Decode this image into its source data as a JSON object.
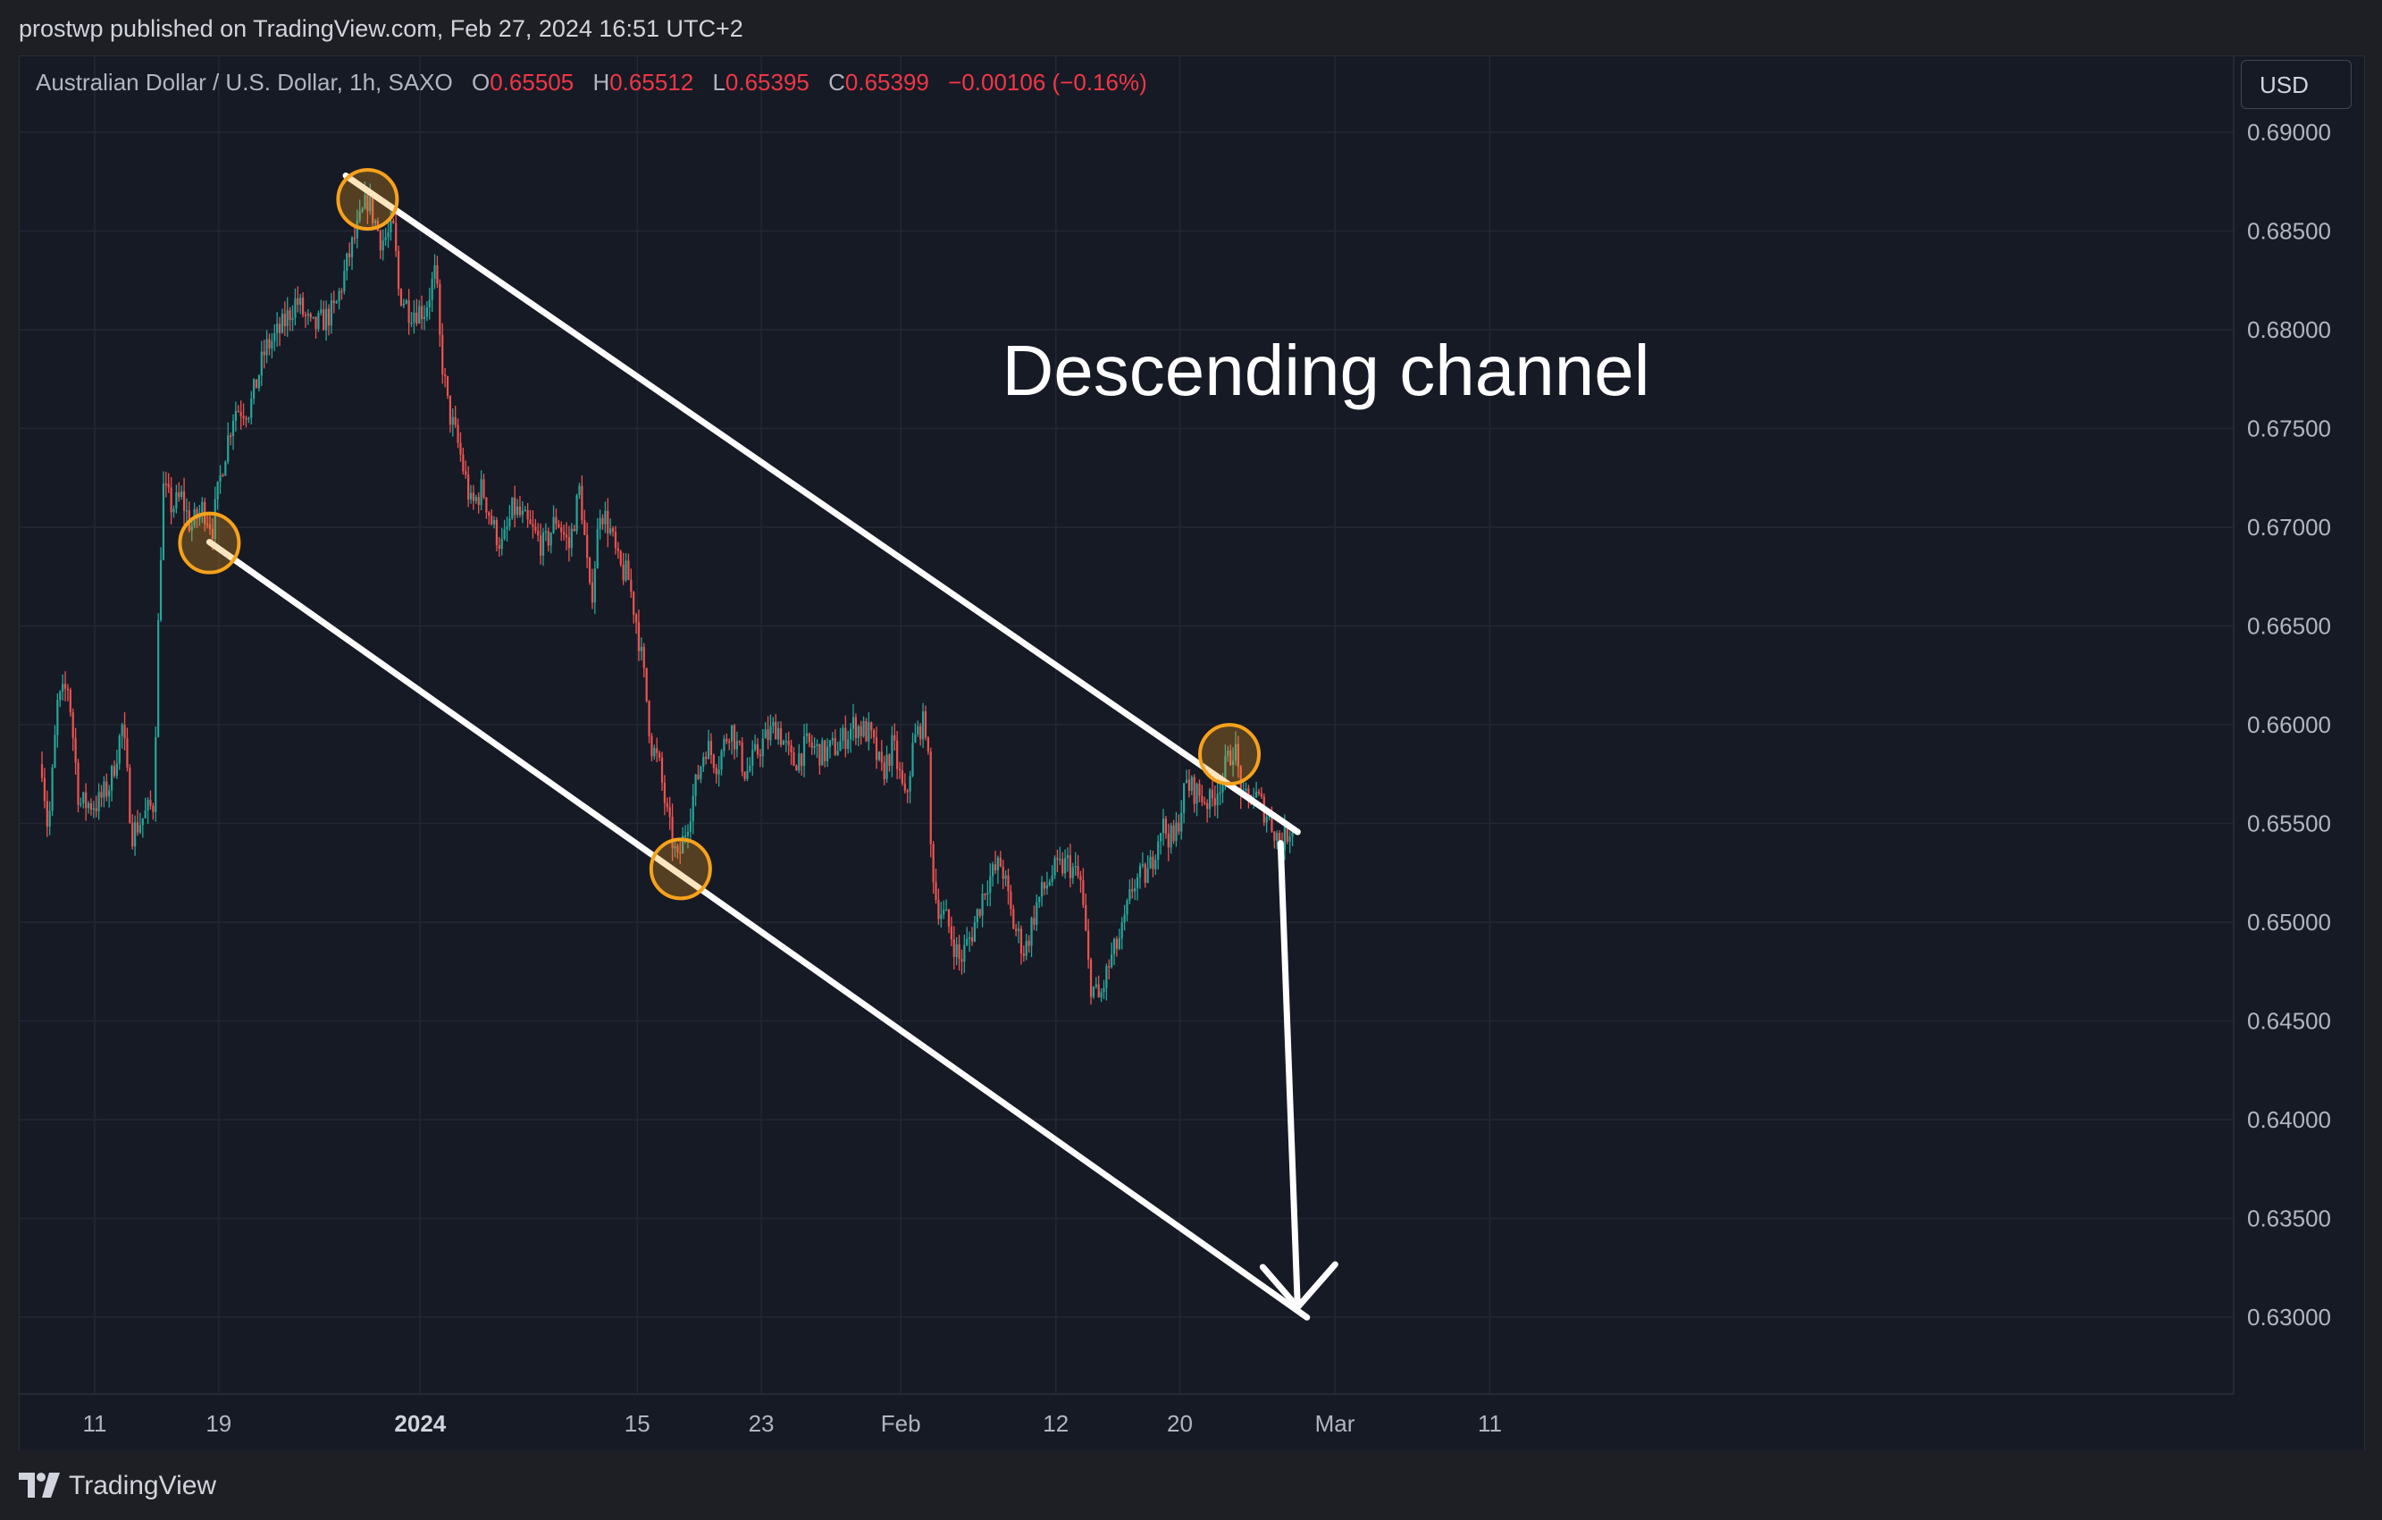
{
  "header": {
    "published_text": "prostwp published on TradingView.com, Feb 27, 2024 16:51 UTC+2"
  },
  "legend": {
    "symbol": "Australian Dollar / U.S. Dollar, 1h, SAXO",
    "open_label": "O",
    "open": "0.65505",
    "high_label": "H",
    "high": "0.65512",
    "low_label": "L",
    "low": "0.65395",
    "close_label": "C",
    "close": "0.65399",
    "change": "−0.00106 (−0.16%)"
  },
  "currency_button": "USD",
  "footer": {
    "brand": "TradingView",
    "logo_icon": "tradingview-logo-icon"
  },
  "colors": {
    "background": "#161a25",
    "grid": "#232733",
    "up": "#26a69a",
    "down": "#ef5350",
    "annotation": "#ffffff",
    "highlight_circle": "#f7a21b",
    "legend_values": "#f23645"
  },
  "chart_data": {
    "type": "candlestick",
    "title": "Australian Dollar / U.S. Dollar, 1h, SAXO",
    "annotation_text": "Descending channel",
    "y_axis": {
      "range": [
        0.6265,
        0.6915
      ],
      "ticks": [
        "0.69000",
        "0.68500",
        "0.68000",
        "0.67500",
        "0.67000",
        "0.66500",
        "0.66000",
        "0.65500",
        "0.65000",
        "0.64500",
        "0.64000",
        "0.63500",
        "0.63000"
      ]
    },
    "x_axis": {
      "ticks": [
        {
          "label": "11",
          "day": 0,
          "bold": false
        },
        {
          "label": "19",
          "day": 8,
          "bold": false
        },
        {
          "label": "2024",
          "day": 21,
          "bold": true
        },
        {
          "label": "15",
          "day": 35,
          "bold": false
        },
        {
          "label": "23",
          "day": 43,
          "bold": false
        },
        {
          "label": "Feb",
          "day": 52,
          "bold": false
        },
        {
          "label": "12",
          "day": 62,
          "bold": false
        },
        {
          "label": "20",
          "day": 70,
          "bold": false
        },
        {
          "label": "Mar",
          "day": 80,
          "bold": false
        },
        {
          "label": "11",
          "day": 90,
          "bold": false
        }
      ]
    },
    "price_path": [
      {
        "day": -3.4,
        "price": 0.658
      },
      {
        "day": -3.0,
        "price": 0.6545
      },
      {
        "day": -2.4,
        "price": 0.661
      },
      {
        "day": -1.7,
        "price": 0.662
      },
      {
        "day": -1.0,
        "price": 0.656
      },
      {
        "day": 0.2,
        "price": 0.656
      },
      {
        "day": 1.0,
        "price": 0.657
      },
      {
        "day": 1.8,
        "price": 0.66
      },
      {
        "day": 2.4,
        "price": 0.6545
      },
      {
        "day": 3.3,
        "price": 0.6555
      },
      {
        "day": 3.8,
        "price": 0.656
      },
      {
        "day": 4.1,
        "price": 0.665
      },
      {
        "day": 4.4,
        "price": 0.672
      },
      {
        "day": 5.0,
        "price": 0.671
      },
      {
        "day": 5.6,
        "price": 0.6715
      },
      {
        "day": 6.2,
        "price": 0.67
      },
      {
        "day": 7.0,
        "price": 0.671
      },
      {
        "day": 7.6,
        "price": 0.67
      },
      {
        "day": 8.2,
        "price": 0.673
      },
      {
        "day": 9.0,
        "price": 0.676
      },
      {
        "day": 10.0,
        "price": 0.676
      },
      {
        "day": 11.0,
        "price": 0.679
      },
      {
        "day": 12.0,
        "price": 0.68
      },
      {
        "day": 13.0,
        "price": 0.6815
      },
      {
        "day": 14.0,
        "price": 0.68
      },
      {
        "day": 15.5,
        "price": 0.681
      },
      {
        "day": 16.5,
        "price": 0.684
      },
      {
        "day": 17.6,
        "price": 0.6866
      },
      {
        "day": 18.5,
        "price": 0.6845
      },
      {
        "day": 19.3,
        "price": 0.685
      },
      {
        "day": 19.6,
        "price": 0.682
      },
      {
        "day": 20.3,
        "price": 0.681
      },
      {
        "day": 21.3,
        "price": 0.681
      },
      {
        "day": 22.0,
        "price": 0.683
      },
      {
        "day": 22.3,
        "price": 0.679
      },
      {
        "day": 22.8,
        "price": 0.676
      },
      {
        "day": 23.5,
        "price": 0.674
      },
      {
        "day": 24.3,
        "price": 0.671
      },
      {
        "day": 25.0,
        "price": 0.672
      },
      {
        "day": 25.7,
        "price": 0.67
      },
      {
        "day": 26.3,
        "price": 0.669
      },
      {
        "day": 27.0,
        "price": 0.671
      },
      {
        "day": 28.0,
        "price": 0.67
      },
      {
        "day": 29.0,
        "price": 0.669
      },
      {
        "day": 29.8,
        "price": 0.6705
      },
      {
        "day": 30.6,
        "price": 0.669
      },
      {
        "day": 31.3,
        "price": 0.672
      },
      {
        "day": 32.0,
        "price": 0.666
      },
      {
        "day": 32.6,
        "price": 0.671
      },
      {
        "day": 33.2,
        "price": 0.67
      },
      {
        "day": 33.8,
        "price": 0.668
      },
      {
        "day": 34.4,
        "price": 0.6675
      },
      {
        "day": 35.0,
        "price": 0.665
      },
      {
        "day": 35.5,
        "price": 0.662
      },
      {
        "day": 35.9,
        "price": 0.659
      },
      {
        "day": 36.4,
        "price": 0.658
      },
      {
        "day": 37.0,
        "price": 0.655
      },
      {
        "day": 37.6,
        "price": 0.653
      },
      {
        "day": 38.2,
        "price": 0.655
      },
      {
        "day": 38.8,
        "price": 0.657
      },
      {
        "day": 39.4,
        "price": 0.659
      },
      {
        "day": 40.2,
        "price": 0.658
      },
      {
        "day": 41.0,
        "price": 0.66
      },
      {
        "day": 42.0,
        "price": 0.6575
      },
      {
        "day": 43.0,
        "price": 0.659
      },
      {
        "day": 44.0,
        "price": 0.66
      },
      {
        "day": 45.0,
        "price": 0.658
      },
      {
        "day": 46.0,
        "price": 0.659
      },
      {
        "day": 47.0,
        "price": 0.6585
      },
      {
        "day": 48.0,
        "price": 0.659
      },
      {
        "day": 49.0,
        "price": 0.66
      },
      {
        "day": 50.0,
        "price": 0.6595
      },
      {
        "day": 50.8,
        "price": 0.6575
      },
      {
        "day": 51.5,
        "price": 0.659
      },
      {
        "day": 52.3,
        "price": 0.656
      },
      {
        "day": 52.8,
        "price": 0.659
      },
      {
        "day": 53.3,
        "price": 0.66
      },
      {
        "day": 53.7,
        "price": 0.66
      },
      {
        "day": 53.9,
        "price": 0.654
      },
      {
        "day": 54.3,
        "price": 0.651
      },
      {
        "day": 55.0,
        "price": 0.65
      },
      {
        "day": 55.8,
        "price": 0.648
      },
      {
        "day": 56.6,
        "price": 0.6495
      },
      {
        "day": 57.5,
        "price": 0.652
      },
      {
        "day": 58.5,
        "price": 0.653
      },
      {
        "day": 59.2,
        "price": 0.65
      },
      {
        "day": 60.0,
        "price": 0.6485
      },
      {
        "day": 60.8,
        "price": 0.651
      },
      {
        "day": 61.8,
        "price": 0.6525
      },
      {
        "day": 62.8,
        "price": 0.653
      },
      {
        "day": 63.6,
        "price": 0.652
      },
      {
        "day": 64.2,
        "price": 0.647
      },
      {
        "day": 64.8,
        "price": 0.646
      },
      {
        "day": 65.5,
        "price": 0.648
      },
      {
        "day": 66.3,
        "price": 0.6495
      },
      {
        "day": 67.0,
        "price": 0.652
      },
      {
        "day": 68.0,
        "price": 0.6525
      },
      {
        "day": 68.8,
        "price": 0.655
      },
      {
        "day": 69.6,
        "price": 0.654
      },
      {
        "day": 70.4,
        "price": 0.657
      },
      {
        "day": 71.2,
        "price": 0.6565
      },
      {
        "day": 72.0,
        "price": 0.656
      },
      {
        "day": 72.8,
        "price": 0.6575
      },
      {
        "day": 73.5,
        "price": 0.659
      },
      {
        "day": 74.1,
        "price": 0.656
      },
      {
        "day": 74.8,
        "price": 0.6565
      },
      {
        "day": 75.6,
        "price": 0.6555
      },
      {
        "day": 76.5,
        "price": 0.654
      },
      {
        "day": 77.3,
        "price": 0.655
      }
    ],
    "channel": {
      "upper": [
        {
          "day": 16.2,
          "price": 0.6878
        },
        {
          "day": 77.6,
          "price": 0.65457
        }
      ],
      "lower": [
        {
          "day": 7.4,
          "price": 0.66925
        },
        {
          "day": 78.2,
          "price": 0.62999
        }
      ]
    },
    "touch_points": [
      {
        "day": 17.6,
        "price": 0.6866
      },
      {
        "day": 7.4,
        "price": 0.6692
      },
      {
        "day": 37.8,
        "price": 0.6527
      },
      {
        "day": 73.2,
        "price": 0.6585
      }
    ],
    "projection_arrow": [
      {
        "day": 76.5,
        "price": 0.654
      },
      {
        "day": 77.6,
        "price": 0.6305
      }
    ]
  }
}
